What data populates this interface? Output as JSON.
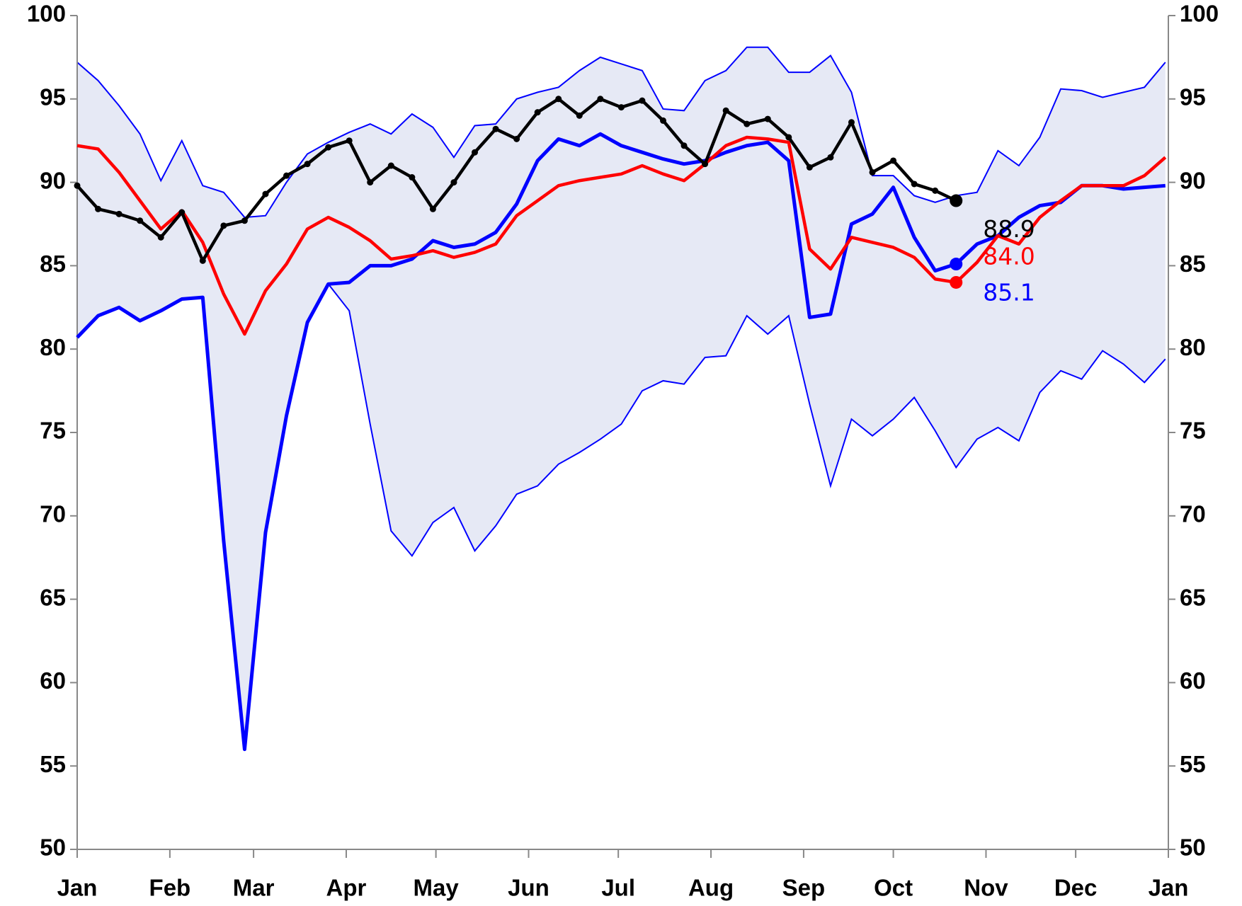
{
  "chart_data": {
    "type": "line",
    "x": [
      0,
      7,
      14,
      21,
      28,
      35,
      42,
      49,
      56,
      63,
      70,
      77,
      84,
      91,
      98,
      105,
      112,
      119,
      126,
      133,
      140,
      147,
      154,
      161,
      168,
      175,
      182,
      189,
      196,
      203,
      210,
      217,
      224,
      231,
      238,
      245,
      252,
      259,
      266,
      273,
      280,
      287,
      294,
      301,
      308,
      315,
      322,
      329,
      336,
      343,
      350,
      357,
      364
    ],
    "xlim": [
      0,
      365
    ],
    "xticks": [
      {
        "value": 0,
        "label": "Jan"
      },
      {
        "value": 31,
        "label": "Feb"
      },
      {
        "value": 59,
        "label": "Mar"
      },
      {
        "value": 90,
        "label": "Apr"
      },
      {
        "value": 120,
        "label": "May"
      },
      {
        "value": 151,
        "label": "Jun"
      },
      {
        "value": 181,
        "label": "Jul"
      },
      {
        "value": 212,
        "label": "Aug"
      },
      {
        "value": 243,
        "label": "Sep"
      },
      {
        "value": 273,
        "label": "Oct"
      },
      {
        "value": 304,
        "label": "Nov"
      },
      {
        "value": 334,
        "label": "Dec"
      },
      {
        "value": 365,
        "label": "Jan"
      }
    ],
    "ylim": [
      50,
      100
    ],
    "yticks": [
      50,
      55,
      60,
      65,
      70,
      75,
      80,
      85,
      90,
      95,
      100
    ],
    "y2lim": [
      50,
      100
    ],
    "y2ticks": [
      50,
      55,
      60,
      65,
      70,
      75,
      80,
      85,
      90,
      95,
      100
    ],
    "band": {
      "fill": "#e6e9f5",
      "edge_color": "#0000ff",
      "upper": [
        97.2,
        96.1,
        94.6,
        92.9,
        90.1,
        92.5,
        89.8,
        89.4,
        87.9,
        88.0,
        90.0,
        91.7,
        92.4,
        93.0,
        93.5,
        92.9,
        94.1,
        93.3,
        91.5,
        93.4,
        93.5,
        95.0,
        95.4,
        95.7,
        96.7,
        97.5,
        97.1,
        96.7,
        94.4,
        94.3,
        96.1,
        96.7,
        98.1,
        98.1,
        96.6,
        96.6,
        97.6,
        95.4,
        90.4,
        90.4,
        89.2,
        88.8,
        89.2,
        89.4,
        91.9,
        91.0,
        92.7,
        95.6,
        95.5,
        95.1,
        95.4,
        95.7,
        97.2
      ],
      "lower": [
        80.7,
        82.0,
        82.5,
        81.7,
        82.3,
        83.0,
        83.1,
        68.5,
        56.0,
        69.0,
        76.0,
        81.6,
        83.9,
        82.3,
        75.5,
        69.1,
        67.6,
        69.6,
        70.5,
        67.9,
        69.4,
        71.3,
        71.8,
        73.1,
        73.8,
        74.6,
        75.5,
        77.5,
        78.1,
        77.9,
        79.5,
        79.6,
        82.0,
        80.9,
        82.0,
        76.7,
        71.8,
        75.8,
        74.8,
        75.8,
        77.1,
        75.1,
        72.9,
        74.6,
        75.3,
        74.5,
        77.4,
        78.7,
        78.2,
        79.9,
        79.1,
        78.0,
        79.4
      ]
    },
    "series": [
      {
        "color": "#0000ff",
        "markers": false,
        "values": [
          80.7,
          82.0,
          82.5,
          81.7,
          82.3,
          83.0,
          83.1,
          68.5,
          56.0,
          69.0,
          76.0,
          81.6,
          83.9,
          84.0,
          85.0,
          85.0,
          85.4,
          86.5,
          86.1,
          86.3,
          87.0,
          88.7,
          91.3,
          92.6,
          92.2,
          92.9,
          92.2,
          91.8,
          91.4,
          91.1,
          91.3,
          91.8,
          92.2,
          92.4,
          91.3,
          81.9,
          82.1,
          87.5,
          88.1,
          89.7,
          86.7,
          84.7,
          85.1,
          86.3,
          86.8,
          87.9,
          88.6,
          88.8,
          89.8,
          89.8,
          89.6,
          89.7,
          89.8
        ],
        "value_labels": [
          null,
          null,
          null,
          null,
          null,
          null,
          null,
          null,
          null,
          null,
          null,
          null,
          null,
          null,
          null,
          null,
          null,
          null,
          null,
          null,
          null,
          null,
          null,
          null,
          null,
          null,
          null,
          null,
          null,
          null,
          null,
          null,
          null,
          null,
          null,
          null,
          null,
          null,
          null,
          null,
          null,
          null,
          "85.1",
          null,
          null,
          null,
          null,
          null,
          null,
          null,
          null,
          null,
          null
        ]
      },
      {
        "color": "#ff0000",
        "markers": false,
        "values": [
          92.2,
          92.0,
          90.6,
          88.9,
          87.2,
          88.3,
          86.4,
          83.3,
          80.9,
          83.5,
          85.1,
          87.2,
          87.9,
          87.3,
          86.5,
          85.4,
          85.6,
          85.9,
          85.5,
          85.8,
          86.3,
          88.0,
          88.9,
          89.8,
          90.1,
          90.3,
          90.5,
          91.0,
          90.5,
          90.1,
          91.1,
          92.2,
          92.7,
          92.6,
          92.4,
          86.0,
          84.8,
          86.7,
          86.4,
          86.1,
          85.5,
          84.2,
          84.0,
          85.2,
          86.8,
          86.3,
          87.9,
          88.9,
          89.8,
          89.8,
          89.8,
          90.4,
          91.5
        ],
        "value_labels": [
          null,
          null,
          null,
          null,
          null,
          null,
          null,
          null,
          null,
          null,
          null,
          null,
          null,
          null,
          null,
          null,
          null,
          null,
          null,
          null,
          null,
          null,
          null,
          null,
          null,
          null,
          null,
          null,
          null,
          null,
          null,
          null,
          null,
          null,
          null,
          null,
          null,
          null,
          null,
          null,
          null,
          null,
          "84.0",
          null,
          null,
          null,
          null,
          null,
          null,
          null,
          null,
          null,
          null
        ]
      },
      {
        "color": "#000000",
        "markers": true,
        "values": [
          89.8,
          88.4,
          88.1,
          87.7,
          86.7,
          88.2,
          85.3,
          87.4,
          87.7,
          89.3,
          90.4,
          91.1,
          92.1,
          92.5,
          90.0,
          91.0,
          90.3,
          88.4,
          90.0,
          91.8,
          93.2,
          92.6,
          94.2,
          95.0,
          94.0,
          95.0,
          94.5,
          94.9,
          93.7,
          92.2,
          91.1,
          94.3,
          93.5,
          93.8,
          92.7,
          90.9,
          91.5,
          93.6,
          90.6,
          91.3,
          89.9,
          89.5,
          88.9,
          null,
          null,
          null,
          null,
          null,
          null,
          null,
          null,
          null,
          null
        ],
        "value_labels": [
          null,
          null,
          null,
          null,
          null,
          null,
          null,
          null,
          null,
          null,
          null,
          null,
          null,
          null,
          null,
          null,
          null,
          null,
          null,
          null,
          null,
          null,
          null,
          null,
          null,
          null,
          null,
          null,
          null,
          null,
          null,
          null,
          null,
          null,
          null,
          null,
          null,
          null,
          null,
          null,
          null,
          null,
          "88.9",
          null,
          null,
          null,
          null,
          null,
          null,
          null,
          null,
          null,
          null
        ]
      }
    ]
  }
}
